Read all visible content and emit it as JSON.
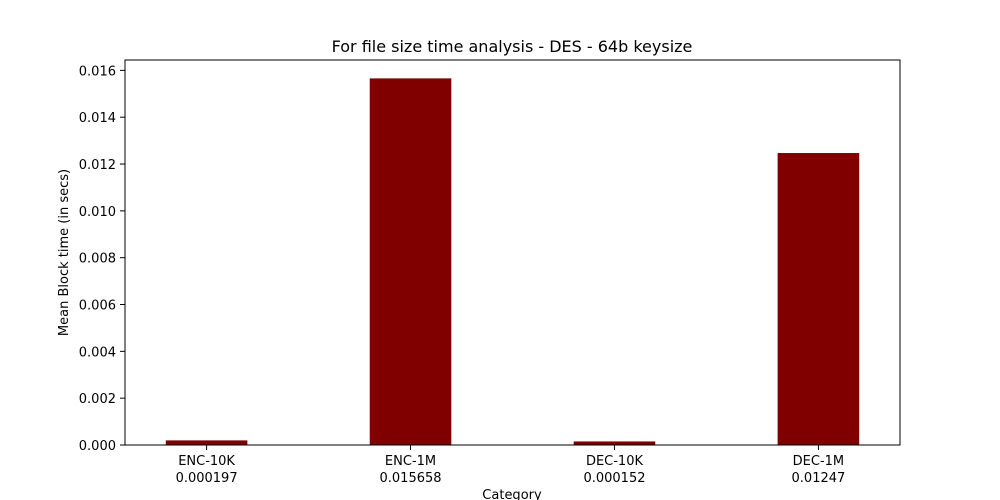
{
  "chart_data": {
    "type": "bar",
    "title": "For file size time analysis - DES - 64b keysize",
    "xlabel": "Category",
    "ylabel": "Mean Block time (in secs)",
    "categories": [
      "ENC-10K",
      "ENC-1M",
      "DEC-10K",
      "DEC-1M"
    ],
    "category_values_text": [
      "0.000197",
      "0.015658",
      "0.000152",
      "0.01247"
    ],
    "values": [
      0.000197,
      0.015658,
      0.000152,
      0.01247
    ],
    "ylim": [
      0,
      0.016443
    ],
    "yticks": [
      0,
      0.002,
      0.004,
      0.006,
      0.008,
      0.01,
      0.012,
      0.014,
      0.016
    ],
    "ytick_labels": [
      "0.000",
      "0.002",
      "0.004",
      "0.006",
      "0.008",
      "0.010",
      "0.012",
      "0.014",
      "0.016"
    ],
    "grid": false,
    "bar_color": "#800000"
  }
}
